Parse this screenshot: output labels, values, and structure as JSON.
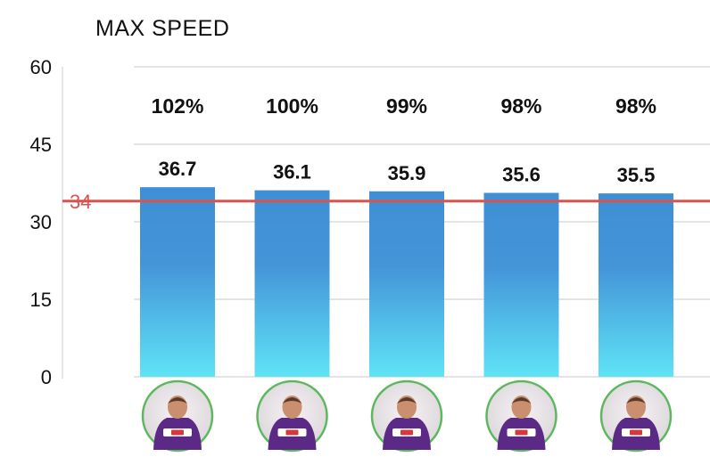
{
  "chart_data": {
    "type": "bar",
    "title": "MAX SPEED",
    "xlabel": "",
    "ylabel": "",
    "ylim": [
      0,
      60
    ],
    "y_ticks": [
      "0",
      "15",
      "30",
      "45",
      "60"
    ],
    "grid": true,
    "categories": [
      "",
      "",
      "",
      "",
      ""
    ],
    "values": [
      36.7,
      36.1,
      35.9,
      35.6,
      35.5
    ],
    "value_labels": [
      "36.7",
      "36.1",
      "35.9",
      "35.6",
      "35.5"
    ],
    "percent_labels": [
      "102%",
      "100%",
      "99%",
      "98%",
      "98%"
    ],
    "reference_line": {
      "value": 34,
      "label": "34",
      "color": "#d9534f"
    },
    "bar_gradient": {
      "top": "#3f8fd6",
      "bottom": "#5fe3f7"
    },
    "category_images": [
      "player-photo",
      "player-photo",
      "player-photo",
      "player-photo",
      "player-photo"
    ]
  }
}
